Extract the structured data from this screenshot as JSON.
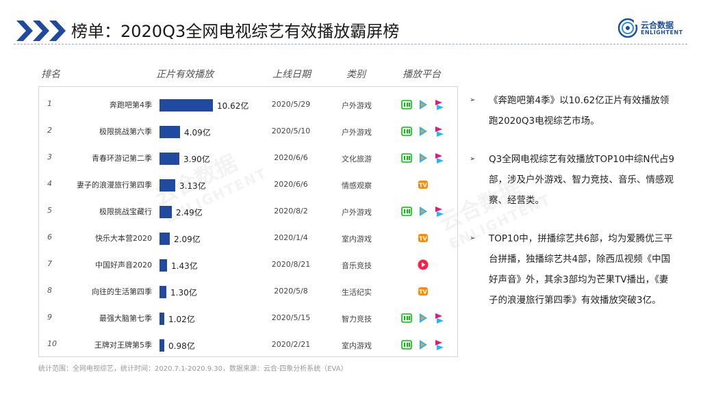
{
  "header": {
    "title": "榜单：2020Q3全网电视综艺有效播放霸屏榜"
  },
  "logo": {
    "cn": "云合数据",
    "en": "ENLIGHTENT"
  },
  "watermark": {
    "cn": "云合数据",
    "en": "ENLIGHTENT"
  },
  "columns": {
    "rank": "排名",
    "views": "正片有效播放",
    "date": "上线日期",
    "category": "类别",
    "platform": "播放平台"
  },
  "chart_data": {
    "type": "bar",
    "orientation": "horizontal",
    "unit": "亿",
    "categories": [
      "奔跑吧第4季",
      "极限挑战第六季",
      "青春环游记第二季",
      "妻子的浪漫旅行第四季",
      "极限挑战宝藏行",
      "快乐大本营2020",
      "中国好声音2020",
      "向往的生活第四季",
      "最强大脑第七季",
      "王牌对王牌第5季"
    ],
    "values": [
      10.62,
      4.09,
      3.9,
      3.13,
      2.49,
      2.09,
      1.43,
      1.3,
      1.02,
      0.98
    ],
    "value_labels": [
      "10.62亿",
      "4.09亿",
      "3.90亿",
      "3.13亿",
      "2.49亿",
      "2.09亿",
      "1.43亿",
      "1.30亿",
      "1.02亿",
      "0.98亿"
    ],
    "bar_color": "#1f4aa0"
  },
  "rows": [
    {
      "rank": "1",
      "name": "奔跑吧第4季",
      "value": 10.62,
      "label": "10.62亿",
      "date": "2020/5/29",
      "category": "户外游戏",
      "platforms": [
        "iqiyi",
        "tencent",
        "youku"
      ]
    },
    {
      "rank": "2",
      "name": "极限挑战第六季",
      "value": 4.09,
      "label": "4.09亿",
      "date": "2020/5/10",
      "category": "户外游戏",
      "platforms": [
        "iqiyi",
        "tencent",
        "youku"
      ]
    },
    {
      "rank": "3",
      "name": "青春环游记第二季",
      "value": 3.9,
      "label": "3.90亿",
      "date": "2020/6/6",
      "category": "文化旅游",
      "platforms": [
        "iqiyi",
        "tencent",
        "youku"
      ]
    },
    {
      "rank": "4",
      "name": "妻子的浪漫旅行第四季",
      "value": 3.13,
      "label": "3.13亿",
      "date": "2020/6/6",
      "category": "情感观察",
      "platforms": [
        "mango"
      ]
    },
    {
      "rank": "5",
      "name": "极限挑战宝藏行",
      "value": 2.49,
      "label": "2.49亿",
      "date": "2020/8/2",
      "category": "户外游戏",
      "platforms": [
        "iqiyi",
        "tencent",
        "youku"
      ]
    },
    {
      "rank": "6",
      "name": "快乐大本营2020",
      "value": 2.09,
      "label": "2.09亿",
      "date": "2020/1/4",
      "category": "室内游戏",
      "platforms": [
        "mango"
      ]
    },
    {
      "rank": "7",
      "name": "中国好声音2020",
      "value": 1.43,
      "label": "1.43亿",
      "date": "2020/8/21",
      "category": "音乐竞技",
      "platforms": [
        "xigua"
      ]
    },
    {
      "rank": "8",
      "name": "向往的生活第四季",
      "value": 1.3,
      "label": "1.30亿",
      "date": "2020/5/8",
      "category": "生活纪实",
      "platforms": [
        "mango"
      ]
    },
    {
      "rank": "9",
      "name": "最强大脑第七季",
      "value": 1.02,
      "label": "1.02亿",
      "date": "2020/5/15",
      "category": "智力竞技",
      "platforms": [
        "iqiyi",
        "tencent",
        "youku"
      ]
    },
    {
      "rank": "10",
      "name": "王牌对王牌第5季",
      "value": 0.98,
      "label": "0.98亿",
      "date": "2020/2/21",
      "category": "室内游戏",
      "platforms": [
        "iqiyi",
        "tencent",
        "youku"
      ]
    }
  ],
  "platform_colors": {
    "iqiyi": "#00be06",
    "tencent": "#20b7ff",
    "youku": "#e6167e",
    "mango": "#ff8a00",
    "xigua": "#ff1e44"
  },
  "footnote": "统计范围：全网电视综艺，统计时间：2020.7.1-2020.9.30，数据来源：云合·四象分析系统（EVA）",
  "bullets": [
    "《奔跑吧第4季》以10.62亿正片有效播放领跑2020Q3电视综艺市场。",
    "Q3全网电视综艺有效播放TOP10中综N代占9部，涉及户外游戏、智力竞技、音乐、情感观察、经营类。",
    "TOP10中，拼播综艺共6部，均为爱腾优三平台拼播，独播综艺共4部，除西瓜视频《中国好声音》外，其余3部均为芒果TV播出，《妻子的浪漫旅行第四季》有效播放突破3亿。"
  ],
  "bullet_marker": "➢"
}
